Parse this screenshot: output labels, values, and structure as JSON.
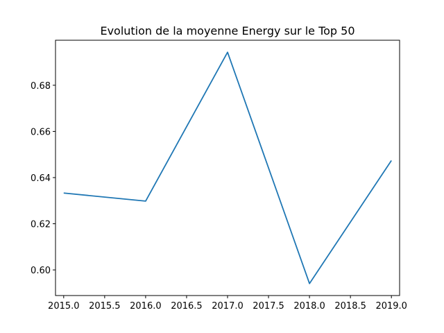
{
  "chart_data": {
    "type": "line",
    "title": "Evolution de la moyenne Energy sur le Top 50",
    "xlabel": "",
    "ylabel": "",
    "xlim": [
      2014.9,
      2019.1
    ],
    "ylim": [
      0.5889,
      0.6995
    ],
    "x_ticks": [
      2015.0,
      2015.5,
      2016.0,
      2016.5,
      2017.0,
      2017.5,
      2018.0,
      2018.5,
      2019.0
    ],
    "x_tick_labels": [
      "2015.0",
      "2015.5",
      "2016.0",
      "2016.5",
      "2017.0",
      "2017.5",
      "2018.0",
      "2018.5",
      "2019.0"
    ],
    "y_ticks": [
      0.6,
      0.62,
      0.64,
      0.66,
      0.68
    ],
    "y_tick_labels": [
      "0.60",
      "0.62",
      "0.64",
      "0.66",
      "0.68"
    ],
    "grid": false,
    "legend": "none",
    "series": [
      {
        "color": "#1f77b4",
        "x": [
          2015,
          2016,
          2017,
          2018,
          2019
        ],
        "y": [
          0.6333,
          0.6298,
          0.6943,
          0.5941,
          0.6474
        ]
      }
    ]
  }
}
